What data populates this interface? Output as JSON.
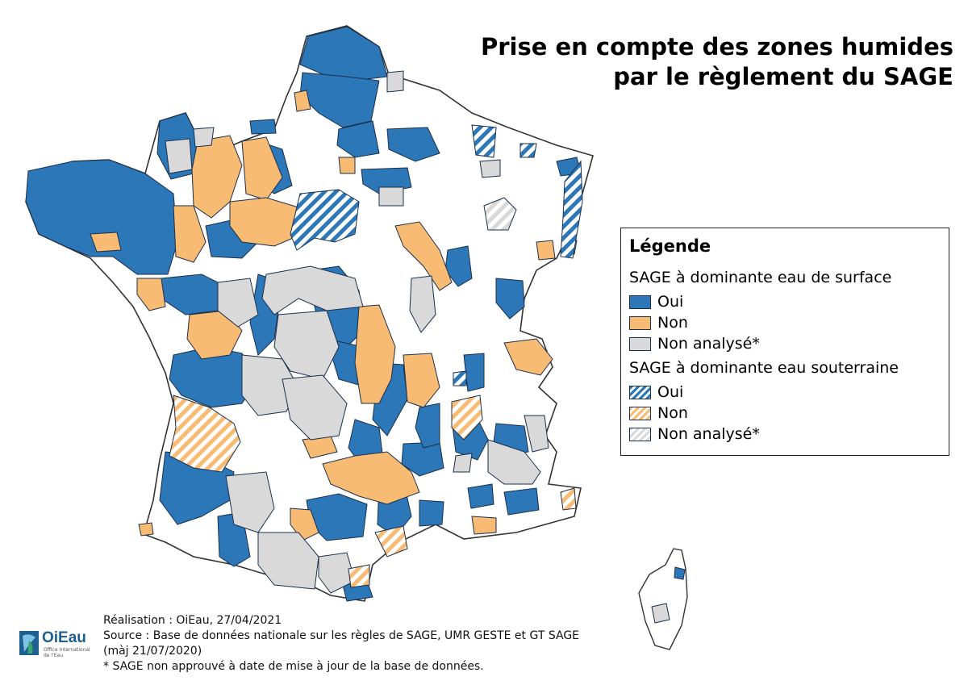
{
  "title": {
    "line1": "Prise en compte des zones humides",
    "line2": "par le règlement du SAGE"
  },
  "legend": {
    "title": "Légende",
    "groups": [
      {
        "label": "SAGE à dominante eau de surface",
        "items": [
          {
            "label": "Oui",
            "color": "#2b77b8",
            "pattern": "solid"
          },
          {
            "label": "Non",
            "color": "#f8bb74",
            "pattern": "solid"
          },
          {
            "label": "Non analysé*",
            "color": "#d9d9d9",
            "pattern": "solid"
          }
        ]
      },
      {
        "label": "SAGE à dominante eau souterraine",
        "items": [
          {
            "label": "Oui",
            "color": "#2b77b8",
            "pattern": "hatched"
          },
          {
            "label": "Non",
            "color": "#f8bb74",
            "pattern": "hatched"
          },
          {
            "label": "Non analysé*",
            "color": "#d9d9d9",
            "pattern": "hatched"
          }
        ]
      }
    ]
  },
  "credits": {
    "line1": "Réalisation : OiEau, 27/04/2021",
    "line2": "Source : Base de données nationale sur les règles de SAGE, UMR GESTE et GT SAGE",
    "line3": "(màj 21/07/2020)",
    "line4": "* SAGE non approuvé à date de mise à jour de la base de données."
  },
  "logo": {
    "name": "OiEau",
    "subtitle": "Office International de l'Eau"
  },
  "colors": {
    "oui": "#2b77b8",
    "non": "#f8bb74",
    "non_analyse": "#d9d9d9",
    "outline": "#1b2f4a",
    "country_outline": "#333333"
  }
}
